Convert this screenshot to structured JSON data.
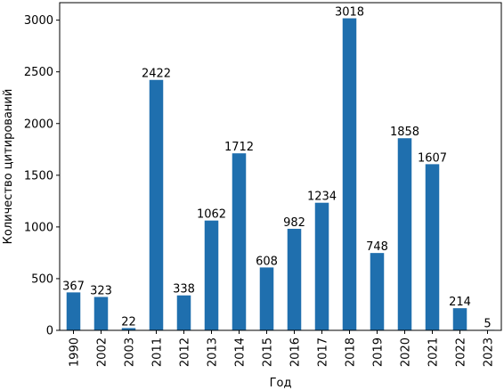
{
  "chart_data": {
    "type": "bar",
    "title": "",
    "xlabel": "Год",
    "ylabel": "Количество цитирований",
    "categories": [
      "1990",
      "2002",
      "2003",
      "2011",
      "2012",
      "2013",
      "2014",
      "2015",
      "2016",
      "2017",
      "2018",
      "2019",
      "2020",
      "2021",
      "2022",
      "2023"
    ],
    "values": [
      367,
      323,
      22,
      2422,
      338,
      1062,
      1712,
      608,
      982,
      1234,
      3018,
      748,
      1858,
      1607,
      214,
      5
    ],
    "data_labels": [
      "367",
      "323",
      "22",
      "2422",
      "338",
      "1062",
      "1712",
      "608",
      "982",
      "1234",
      "3018",
      "748",
      "1858",
      "1607",
      "214",
      "5"
    ],
    "ylim": [
      0,
      3169
    ],
    "yticks": [
      0,
      500,
      1000,
      1500,
      2000,
      2500,
      3000
    ],
    "ytick_labels": [
      "0",
      "500",
      "1000",
      "1500",
      "2000",
      "2500",
      "3000"
    ],
    "grid": false,
    "bar_color": "#1f6fae"
  }
}
